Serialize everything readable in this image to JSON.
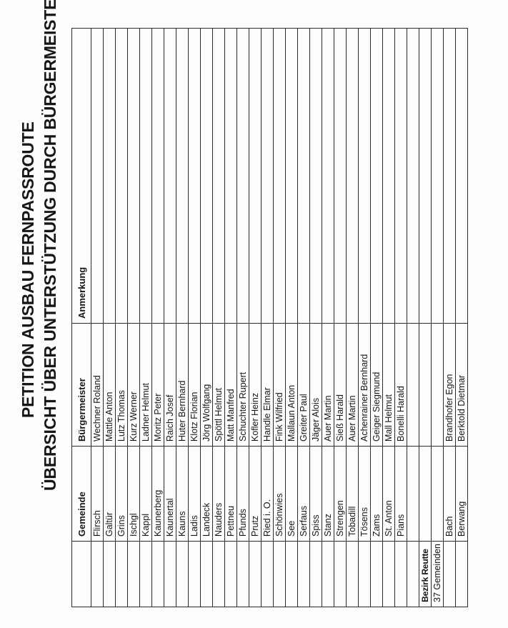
{
  "title": {
    "line1": "PETITION AUSBAU FERNPASSROUTE",
    "line2": "ÜBERSICHT ÜBER UNTERSTÜTZUNG DURCH BÜRGERMEISTER"
  },
  "colors": {
    "paper": "#fdfdfd",
    "ink": "#161616",
    "grid_line": "#2b2b2b"
  },
  "table": {
    "headers": [
      "",
      "Gemeinde",
      "Bürgermeister",
      "Anmerkung"
    ],
    "rows": [
      {
        "cells": [
          "",
          "Flirsch",
          "Wechner Roland",
          ""
        ]
      },
      {
        "cells": [
          "",
          "Galtür",
          "Mattle Anton",
          ""
        ]
      },
      {
        "cells": [
          "",
          "Grins",
          "Lutz Thomas",
          ""
        ]
      },
      {
        "cells": [
          "",
          "Ischgl",
          "Kurz Werner",
          ""
        ]
      },
      {
        "cells": [
          "",
          "Kappl",
          "Ladner Helmut",
          ""
        ]
      },
      {
        "cells": [
          "",
          "Kaunerberg",
          "Moritz Peter",
          ""
        ]
      },
      {
        "cells": [
          "",
          "Kaunertal",
          "Raich Josef",
          ""
        ]
      },
      {
        "cells": [
          "",
          "Kauns",
          "Huter Bernhard",
          ""
        ]
      },
      {
        "cells": [
          "",
          "Ladis",
          "Klotz Florian",
          ""
        ]
      },
      {
        "cells": [
          "",
          "Landeck",
          "Jörg Wolfgang",
          ""
        ]
      },
      {
        "cells": [
          "",
          "Nauders",
          "Spöttl Helmut",
          ""
        ]
      },
      {
        "cells": [
          "",
          "Pettneu",
          "Matt Manfred",
          ""
        ]
      },
      {
        "cells": [
          "",
          "Pfunds",
          "Schuchter Rupert",
          ""
        ]
      },
      {
        "cells": [
          "",
          "Prutz",
          "Kofler Heinz",
          ""
        ]
      },
      {
        "cells": [
          "",
          "Ried i. O.",
          "Handle Elmar",
          ""
        ]
      },
      {
        "cells": [
          "",
          "Schönwies",
          "Fink Wilfried",
          ""
        ]
      },
      {
        "cells": [
          "",
          "See",
          "Mallaun Anton",
          ""
        ]
      },
      {
        "cells": [
          "",
          "Serfaus",
          "Greiter Paul",
          ""
        ]
      },
      {
        "cells": [
          "",
          "Spiss",
          "Jäger Alois",
          ""
        ]
      },
      {
        "cells": [
          "",
          "Stanz",
          "Auer Martin",
          ""
        ]
      },
      {
        "cells": [
          "",
          "Strengen",
          "Sieß Harald",
          ""
        ]
      },
      {
        "cells": [
          "",
          "Tobadill",
          "Auer Martin",
          ""
        ]
      },
      {
        "cells": [
          "",
          "Tösens",
          "Achenrainer Bernhard",
          ""
        ]
      },
      {
        "cells": [
          "",
          "Zams",
          "Geiger Siegmund",
          ""
        ]
      },
      {
        "cells": [
          "",
          "St. Anton",
          "Mall Helmut",
          ""
        ]
      },
      {
        "cells": [
          "",
          "Pians",
          "Bonelli Harald",
          ""
        ]
      },
      {
        "cells": [
          "",
          "",
          "",
          ""
        ]
      },
      {
        "cells": [
          "Bezirk Reutte",
          "",
          "",
          ""
        ],
        "bold": true
      },
      {
        "cells": [
          "37 Gemeinden",
          "",
          "",
          ""
        ]
      },
      {
        "cells": [
          "",
          "Bach",
          "Brandhofer Egon",
          ""
        ]
      },
      {
        "cells": [
          "",
          "Berwang",
          "Berktold Dietmar",
          ""
        ]
      }
    ]
  }
}
